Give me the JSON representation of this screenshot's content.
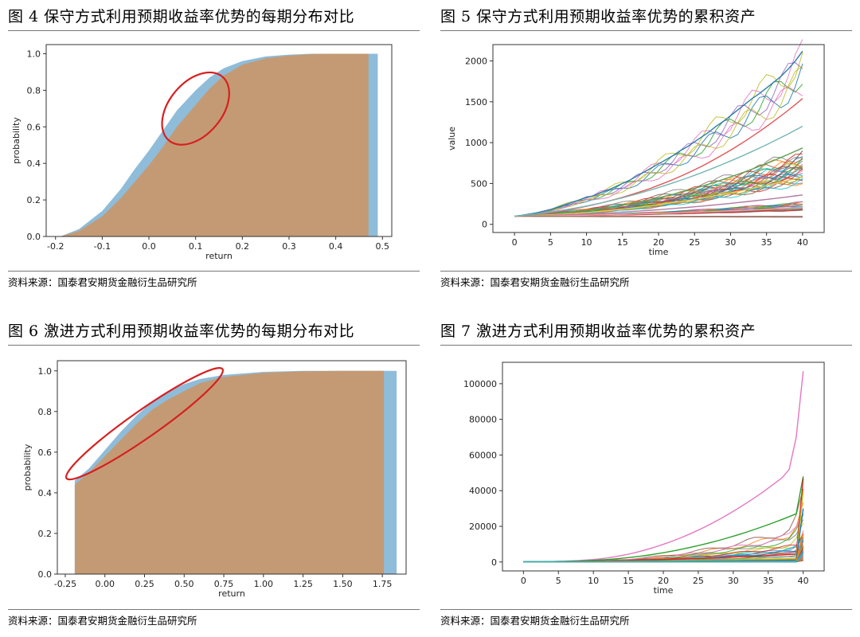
{
  "source_text": "资料来源：国泰君安期货金融衍生品研究所",
  "colors": {
    "blue_cdf": "#8fbcd9",
    "orange_cdf": "#c49a74",
    "highlight": "#d62020",
    "axis": "#333333"
  },
  "chart_data": [
    {
      "id": "fig4",
      "type": "area",
      "title": "图 4 保守方式利用预期收益率优势的每期分布对比",
      "xlabel": "return",
      "ylabel": "probability",
      "xlim": [
        -0.22,
        0.52
      ],
      "ylim": [
        0,
        1.05
      ],
      "xticks": [
        -0.2,
        -0.1,
        0.0,
        0.1,
        0.2,
        0.3,
        0.4,
        0.5
      ],
      "xtick_labels": [
        "-0.2",
        "-0.1",
        "0.0",
        "0.1",
        "0.2",
        "0.3",
        "0.4",
        "0.5"
      ],
      "yticks": [
        0.0,
        0.2,
        0.4,
        0.6,
        0.8,
        1.0
      ],
      "ytick_labels": [
        "0.0",
        "0.2",
        "0.4",
        "0.6",
        "0.8",
        "1.0"
      ],
      "series": [
        {
          "name": "blue cumulative distribution",
          "x": [
            -0.19,
            -0.15,
            -0.1,
            -0.06,
            -0.03,
            0.0,
            0.03,
            0.06,
            0.1,
            0.13,
            0.16,
            0.2,
            0.25,
            0.3,
            0.35,
            0.4,
            0.49
          ],
          "y": [
            0.0,
            0.04,
            0.14,
            0.26,
            0.37,
            0.47,
            0.58,
            0.69,
            0.8,
            0.87,
            0.92,
            0.96,
            0.985,
            0.995,
            1.0,
            1.0,
            1.0
          ]
        },
        {
          "name": "orange cumulative distribution",
          "x": [
            -0.19,
            -0.15,
            -0.1,
            -0.06,
            -0.03,
            0.0,
            0.03,
            0.06,
            0.1,
            0.13,
            0.16,
            0.2,
            0.25,
            0.3,
            0.35,
            0.4,
            0.47
          ],
          "y": [
            0.0,
            0.03,
            0.11,
            0.21,
            0.3,
            0.39,
            0.49,
            0.6,
            0.72,
            0.81,
            0.88,
            0.94,
            0.975,
            0.99,
            0.998,
            1.0,
            1.0
          ]
        }
      ],
      "annotation": {
        "shape": "ellipse",
        "color": "red",
        "cx": 0.1,
        "cy": 0.7,
        "rx": 0.055,
        "ry": 0.37,
        "rotate": -50
      }
    },
    {
      "id": "fig5",
      "type": "line",
      "title": "图 5 保守方式利用预期收益率优势的累积资产",
      "xlabel": "time",
      "ylabel": "value",
      "xlim": [
        -3,
        43
      ],
      "ylim": [
        -100,
        2200
      ],
      "xticks": [
        0,
        5,
        10,
        15,
        20,
        25,
        30,
        35,
        40
      ],
      "xtick_labels": [
        "0",
        "5",
        "10",
        "15",
        "20",
        "25",
        "30",
        "35",
        "40"
      ],
      "yticks": [
        0,
        500,
        1000,
        1500,
        2000
      ],
      "ytick_labels": [
        "0",
        "500",
        "1000",
        "1500",
        "2000"
      ],
      "series": [
        {
          "name": "path-1",
          "color": "#2d7fa6",
          "values": [
            100,
            110,
            125,
            140,
            160,
            180,
            210,
            240,
            270,
            300,
            330,
            350,
            390,
            420,
            460,
            500,
            540,
            590,
            640,
            690,
            740,
            790,
            840,
            900,
            950,
            1010,
            1070,
            1130,
            1200,
            1260,
            1330,
            1400,
            1470,
            1540,
            1600,
            1670,
            1740,
            1810,
            1900,
            2000,
            2120
          ]
        },
        {
          "name": "path-2",
          "color": "#e15759",
          "values": [
            100,
            105,
            112,
            120,
            130,
            142,
            155,
            170,
            186,
            203,
            221,
            240,
            261,
            283,
            306,
            331,
            357,
            385,
            414,
            445,
            478,
            512,
            548,
            586,
            626,
            668,
            712,
            758,
            806,
            856,
            908,
            962,
            1018,
            1076,
            1136,
            1198,
            1262,
            1328,
            1396,
            1466,
            1540
          ]
        },
        {
          "name": "path-3",
          "color": "#59a14f",
          "values": [
            100,
            103,
            108,
            113,
            119,
            126,
            133,
            141,
            150,
            160,
            170,
            181,
            193,
            206,
            220,
            235,
            251,
            268,
            286,
            305,
            325,
            346,
            368,
            391,
            415,
            440,
            466,
            493,
            521,
            550,
            580,
            611,
            643,
            676,
            710,
            745,
            781,
            818,
            856,
            895,
            935
          ]
        },
        {
          "name": "path-4",
          "color": "#edc948",
          "values": [
            100,
            102,
            105,
            108,
            112,
            116,
            121,
            126,
            132,
            138,
            145,
            152,
            160,
            168,
            177,
            186,
            196,
            206,
            217,
            228,
            240,
            252,
            265,
            278,
            292,
            306,
            321,
            336,
            352,
            368,
            385,
            402,
            420,
            438,
            457,
            476,
            496,
            516,
            537,
            558,
            580
          ]
        },
        {
          "name": "path-5",
          "color": "#b07aa1",
          "values": [
            100,
            101,
            103,
            105,
            107,
            110,
            113,
            116,
            119,
            123,
            127,
            131,
            135,
            140,
            145,
            150,
            155,
            161,
            167,
            173,
            179,
            186,
            193,
            200,
            207,
            215,
            223,
            231,
            239,
            248,
            257,
            266,
            275,
            285,
            295,
            305,
            315,
            326,
            337,
            348,
            360
          ]
        },
        {
          "name": "path-6",
          "color": "#ff9da7",
          "values": [
            100,
            100,
            101,
            102,
            103,
            104,
            105,
            107,
            108,
            110,
            111,
            113,
            115,
            117,
            119,
            121,
            123,
            126,
            128,
            131,
            133,
            136,
            139,
            142,
            145,
            148,
            151,
            154,
            158,
            161,
            165,
            168,
            172,
            176,
            180,
            184,
            188,
            192,
            196,
            201,
            205
          ]
        },
        {
          "name": "path-7",
          "color": "#9c755f",
          "values": [
            100,
            99,
            99,
            98,
            98,
            98,
            97,
            97,
            97,
            96,
            96,
            96,
            95,
            95,
            95,
            95,
            94,
            94,
            94,
            94,
            93,
            93,
            93,
            93,
            93,
            92,
            92,
            92,
            92,
            92,
            91,
            91,
            91,
            91,
            91,
            91,
            90,
            90,
            90,
            90,
            90
          ]
        },
        {
          "name": "path-8",
          "color": "#76b7b2",
          "values": [
            100,
            108,
            117,
            127,
            138,
            150,
            163,
            177,
            192,
            208,
            225,
            243,
            262,
            282,
            303,
            325,
            348,
            372,
            397,
            423,
            450,
            478,
            507,
            537,
            568,
            600,
            633,
            667,
            702,
            738,
            775,
            813,
            852,
            892,
            933,
            975,
            1018,
            1062,
            1107,
            1153,
            1200
          ]
        }
      ]
    },
    {
      "id": "fig6",
      "type": "area",
      "title": "图 6 激进方式利用预期收益率优势的每期分布对比",
      "xlabel": "return",
      "ylabel": "probability",
      "xlim": [
        -0.3,
        1.9
      ],
      "ylim": [
        0,
        1.05
      ],
      "xticks": [
        -0.25,
        0.0,
        0.25,
        0.5,
        0.75,
        1.0,
        1.25,
        1.5,
        1.75
      ],
      "xtick_labels": [
        "-0.25",
        "0.00",
        "0.25",
        "0.50",
        "0.75",
        "1.00",
        "1.25",
        "1.50",
        "1.75"
      ],
      "yticks": [
        0.0,
        0.2,
        0.4,
        0.6,
        0.8,
        1.0
      ],
      "ytick_labels": [
        "0.0",
        "0.2",
        "0.4",
        "0.6",
        "0.8",
        "1.0"
      ],
      "series": [
        {
          "name": "blue cumulative distribution",
          "x": [
            -0.19,
            -0.1,
            0.0,
            0.1,
            0.2,
            0.3,
            0.4,
            0.5,
            0.6,
            0.75,
            1.0,
            1.25,
            1.5,
            1.84
          ],
          "y": [
            0.46,
            0.52,
            0.61,
            0.7,
            0.78,
            0.85,
            0.9,
            0.935,
            0.96,
            0.98,
            0.995,
            1.0,
            1.0,
            1.0
          ]
        },
        {
          "name": "orange cumulative distribution",
          "x": [
            -0.19,
            -0.1,
            0.0,
            0.1,
            0.2,
            0.3,
            0.4,
            0.5,
            0.6,
            0.75,
            1.0,
            1.25,
            1.5,
            1.76
          ],
          "y": [
            0.44,
            0.5,
            0.58,
            0.66,
            0.74,
            0.81,
            0.86,
            0.9,
            0.94,
            0.97,
            0.99,
            0.998,
            1.0,
            1.0
          ]
        }
      ],
      "annotation": {
        "shape": "ellipse",
        "color": "red",
        "cx": 0.25,
        "cy": 0.74,
        "rx": 0.5,
        "ry": 0.08,
        "rotate": -35
      }
    },
    {
      "id": "fig7",
      "type": "line",
      "title": "图 7 激进方式利用预期收益率优势的累积资产",
      "xlabel": "time",
      "ylabel": "",
      "xlim": [
        -3,
        43
      ],
      "ylim": [
        -5000,
        112000
      ],
      "xticks": [
        0,
        5,
        10,
        15,
        20,
        25,
        30,
        35,
        40
      ],
      "xtick_labels": [
        "0",
        "5",
        "10",
        "15",
        "20",
        "25",
        "30",
        "35",
        "40"
      ],
      "yticks": [
        0,
        20000,
        40000,
        60000,
        80000,
        100000
      ],
      "ytick_labels": [
        "0",
        "20000",
        "40000",
        "60000",
        "80000",
        "100000"
      ],
      "series": [
        {
          "name": "path-1",
          "color": "#e377c2",
          "values": [
            100,
            130,
            170,
            220,
            290,
            380,
            500,
            650,
            850,
            1100,
            1400,
            1800,
            2300,
            2900,
            3600,
            4400,
            5300,
            6300,
            7400,
            8600,
            9900,
            11300,
            12800,
            14400,
            16100,
            17900,
            19800,
            21800,
            23900,
            26100,
            28400,
            30800,
            33300,
            35900,
            38600,
            41400,
            44300,
            47300,
            52000,
            70000,
            107000
          ]
        },
        {
          "name": "path-2",
          "color": "#2ca02c",
          "values": [
            100,
            120,
            150,
            190,
            240,
            300,
            380,
            480,
            600,
            750,
            930,
            1150,
            1400,
            1700,
            2050,
            2450,
            2900,
            3400,
            3950,
            4550,
            5200,
            5900,
            6650,
            7450,
            8300,
            9200,
            10150,
            11150,
            12200,
            13300,
            14450,
            15650,
            16900,
            18200,
            19550,
            20950,
            22400,
            23900,
            25450,
            27050,
            48000
          ]
        },
        {
          "name": "path-3",
          "color": "#d62728",
          "values": [
            100,
            115,
            135,
            160,
            190,
            225,
            265,
            310,
            360,
            415,
            475,
            540,
            610,
            685,
            765,
            850,
            940,
            1035,
            1135,
            1240,
            1350,
            1465,
            1585,
            1710,
            1840,
            1975,
            2115,
            2260,
            2410,
            2565,
            2725,
            2890,
            3060,
            3235,
            3415,
            3600,
            3790,
            3985,
            4185,
            4390,
            47000
          ]
        },
        {
          "name": "path-4",
          "color": "#bcbd22",
          "values": [
            100,
            110,
            122,
            136,
            152,
            170,
            190,
            212,
            236,
            262,
            290,
            320,
            352,
            386,
            422,
            460,
            500,
            542,
            586,
            632,
            680,
            730,
            782,
            836,
            892,
            950,
            1010,
            1072,
            1136,
            1202,
            1270,
            1340,
            1412,
            1486,
            1562,
            1640,
            1720,
            1802,
            1886,
            1972,
            40000
          ]
        },
        {
          "name": "path-5",
          "color": "#1f77b4",
          "values": [
            100,
            105,
            111,
            118,
            126,
            135,
            145,
            156,
            168,
            181,
            195,
            210,
            226,
            243,
            261,
            280,
            300,
            321,
            343,
            366,
            390,
            415,
            441,
            468,
            496,
            525,
            555,
            586,
            618,
            651,
            685,
            720,
            756,
            793,
            831,
            870,
            910,
            951,
            993,
            1036,
            30000
          ]
        },
        {
          "name": "path-6",
          "color": "#ff7f0e",
          "values": [
            100,
            102,
            104,
            107,
            110,
            113,
            117,
            121,
            125,
            130,
            135,
            140,
            146,
            152,
            158,
            165,
            172,
            179,
            187,
            195,
            203,
            212,
            221,
            230,
            240,
            250,
            260,
            271,
            282,
            293,
            305,
            317,
            329,
            342,
            355,
            368,
            382,
            396,
            410,
            425,
            16000
          ]
        },
        {
          "name": "path-7",
          "color": "#17becf",
          "values": [
            100,
            101,
            102,
            103,
            104,
            105,
            106,
            107,
            108,
            109,
            110,
            111,
            112,
            113,
            114,
            115,
            116,
            117,
            118,
            119,
            120,
            121,
            122,
            123,
            124,
            125,
            126,
            127,
            128,
            129,
            130,
            131,
            132,
            133,
            134,
            135,
            136,
            137,
            138,
            139,
            5000
          ]
        }
      ]
    }
  ]
}
